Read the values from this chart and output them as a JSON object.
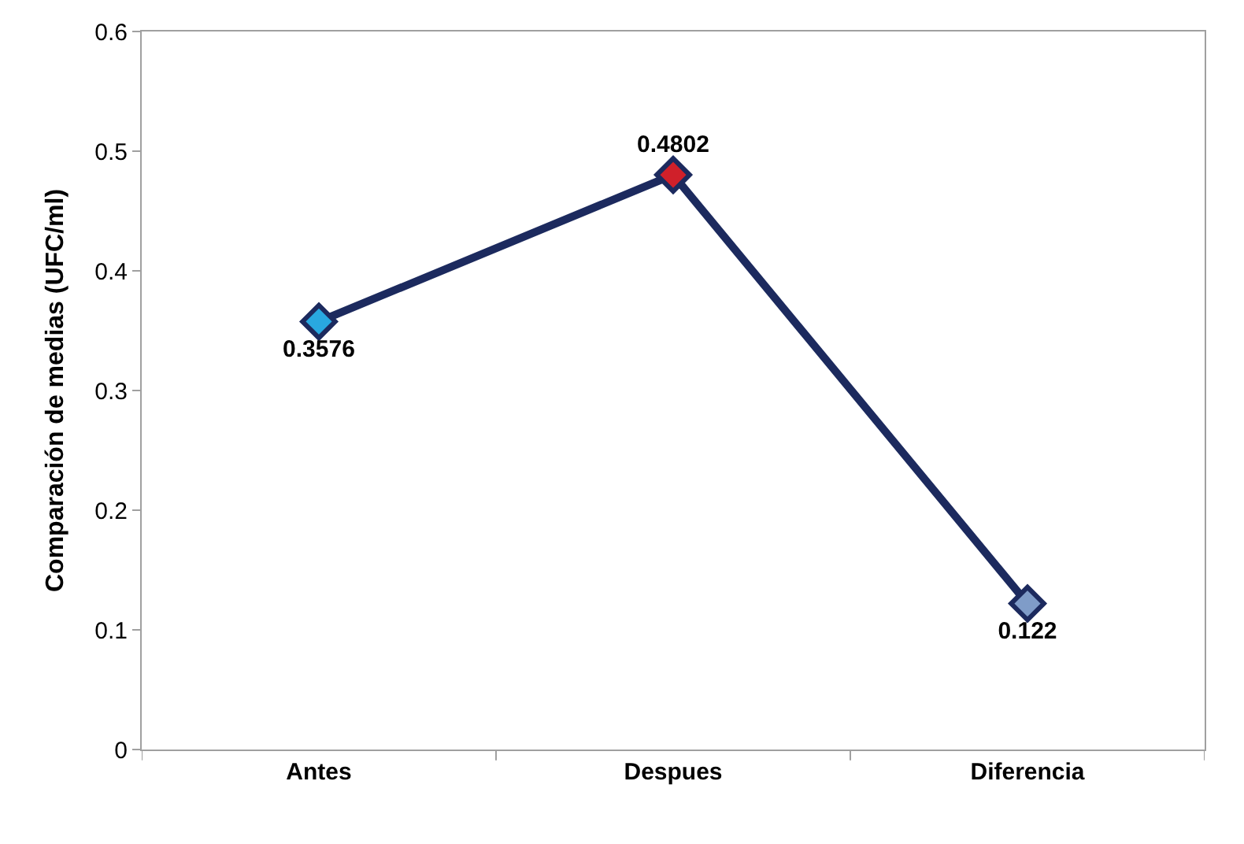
{
  "chart_data": {
    "type": "line",
    "ylabel": "Comparación de medias (UFC/ml)",
    "categories": [
      "Antes",
      "Despues",
      "Diferencia"
    ],
    "series": [
      {
        "color": "#1c2a5e",
        "colors": [
          "#29a8e0",
          "#d0202a",
          "#7f9cc8"
        ],
        "values": [
          0.3576,
          0.4802,
          0.122
        ]
      }
    ],
    "ylim": [
      0,
      0.6
    ],
    "yticks": [
      0,
      0.1,
      0.2,
      0.3,
      0.4,
      0.5,
      0.6
    ],
    "data_labels": true,
    "marker": "diamond"
  }
}
